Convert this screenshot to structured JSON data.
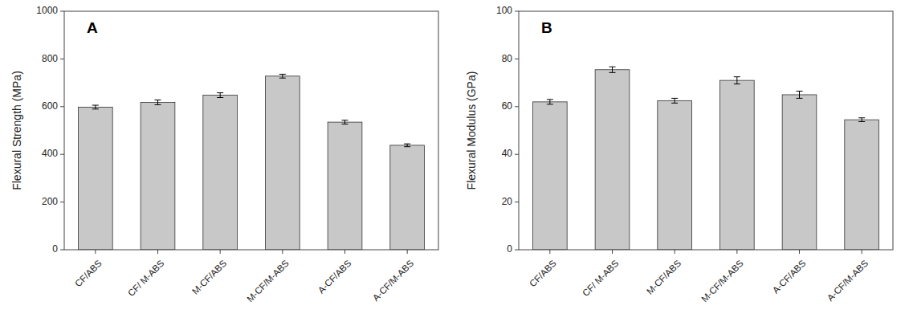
{
  "chart_data": [
    {
      "type": "bar",
      "annotations": [
        "A"
      ],
      "categories": [
        "CF/ABS",
        "CF/ M-ABS",
        "M-CF/ABS",
        "M-CF/M-ABS",
        "A-CF/ABS",
        "A-CF/M-ABS"
      ],
      "values": [
        598,
        618,
        648,
        728,
        535,
        438
      ],
      "errors": [
        8,
        10,
        10,
        8,
        8,
        6
      ],
      "color": "#c8c8c8",
      "ylabel": "Flexural Strength (MPa)",
      "ylim": [
        0,
        1000
      ],
      "yticks": [
        0,
        200,
        400,
        600,
        800,
        1000
      ],
      "grid": false
    },
    {
      "type": "bar",
      "annotations": [
        "B"
      ],
      "categories": [
        "CF/ABS",
        "CF/ M-ABS",
        "M-CF/ABS",
        "M-CF/M-ABS",
        "A-CF/ABS",
        "A-CF/M-ABS"
      ],
      "values": [
        62,
        75.5,
        62.5,
        71,
        65,
        54.5
      ],
      "errors": [
        1.0,
        1.2,
        1.0,
        1.5,
        1.5,
        0.8
      ],
      "color": "#c8c8c8",
      "ylabel": "Flexural Modulus (GPa)",
      "ylim": [
        0,
        100
      ],
      "yticks": [
        0,
        20,
        40,
        60,
        80,
        100
      ],
      "grid": false
    }
  ]
}
